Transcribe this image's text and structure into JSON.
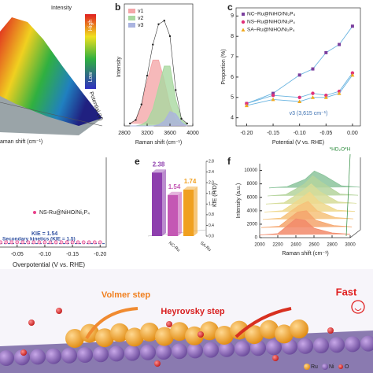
{
  "figure_a": {
    "intensity_label": "Intensity",
    "colorbar_high": "High",
    "colorbar_low": "Low",
    "potential_label": "Potential (V)",
    "raman_label": "aman shift (cm⁻¹)"
  },
  "chart_data": [
    {
      "type": "area",
      "panel_label": "b",
      "x_label": "Raman shift (cm⁻¹)",
      "y_label": "Intensity",
      "x": [
        2900,
        3000,
        3100,
        3200,
        3300,
        3400,
        3500,
        3600,
        3700,
        3800,
        3900
      ],
      "values": [
        0.02,
        0.05,
        0.18,
        0.42,
        0.68,
        0.85,
        0.88,
        0.75,
        0.3,
        0.06,
        0.02
      ],
      "series": [
        {
          "name": "v1",
          "color": "#f4a7a9",
          "values": [
            0.02,
            0.05,
            0.17,
            0.38,
            0.55,
            0.55,
            0.38,
            0.17,
            0.05,
            0.01,
            0
          ]
        },
        {
          "name": "v2",
          "color": "#a9d8a0",
          "values": [
            0,
            0,
            0.01,
            0.04,
            0.14,
            0.32,
            0.5,
            0.5,
            0.22,
            0.05,
            0.01
          ]
        },
        {
          "name": "v3",
          "color": "#aab4e0",
          "values": [
            0,
            0,
            0,
            0,
            0,
            0.01,
            0.04,
            0.12,
            0.1,
            0.03,
            0
          ]
        }
      ],
      "xlim": [
        2800,
        4000
      ],
      "xticks": [
        2800,
        3200,
        3600,
        4000
      ],
      "ylim": [
        0,
        1
      ],
      "legend": "upper left"
    },
    {
      "type": "line",
      "panel_label": "c",
      "x_label": "Potential (V vs. RHE)",
      "y_label": "Proportion (%)",
      "annotation": "v3 (3,615 cm⁻¹)",
      "x": [
        -0.2,
        -0.15,
        -0.1,
        -0.075,
        -0.05,
        -0.025,
        0
      ],
      "series": [
        {
          "name": "NC–Ru@NiHO/Ni₂P₄",
          "color": "#7b3f9e",
          "marker": "square",
          "values": [
            4.7,
            5.2,
            6.1,
            6.4,
            7.2,
            7.6,
            8.5
          ]
        },
        {
          "name": "NS–Ru@NiHO/Ni₂P₄",
          "color": "#e0307a",
          "marker": "circle",
          "values": [
            4.7,
            5.1,
            5.0,
            5.2,
            5.1,
            5.3,
            6.2
          ]
        },
        {
          "name": "SA–Ru@NiHO/Ni₂P₄",
          "color": "#f0a81c",
          "marker": "triangle",
          "values": [
            4.6,
            4.9,
            4.8,
            5.0,
            5.0,
            5.2,
            6.1
          ]
        }
      ],
      "xlim": [
        -0.22,
        0.015
      ],
      "xticks": [
        {
          "value": -0.2,
          "label": "-0.20"
        },
        -0.15,
        {
          "value": -0.1,
          "label": "-0.10"
        },
        -0.05,
        {
          "value": 0,
          "label": "0.00"
        }
      ],
      "ylim": [
        3.6,
        9.4
      ],
      "yticks": [
        4,
        5,
        6,
        7,
        8,
        9
      ],
      "line_color": "#6ab4e0",
      "legend": "upper left"
    },
    {
      "type": "scatter",
      "x_label": "Overpotential (V vs. RHE)",
      "annotation": "KIE = 1.54",
      "reference_label": "Secondary kinetics (KIE = 1.5)",
      "reference_value": 1.5,
      "x": [
        -0.02,
        -0.03,
        -0.04,
        -0.05,
        -0.06,
        -0.07,
        -0.08,
        -0.09,
        -0.1,
        -0.11,
        -0.12,
        -0.13,
        -0.14,
        -0.15,
        -0.16,
        -0.17,
        -0.18,
        -0.19,
        -0.2
      ],
      "series": [
        {
          "name": "NS-Ru@NiHO/Ni₂P₄",
          "color": "#e8408a",
          "values": [
            1.54,
            1.54,
            1.54,
            1.54,
            1.54,
            1.54,
            1.54,
            1.54,
            1.54,
            1.54,
            1.54,
            1.54,
            1.54,
            1.54,
            1.54,
            1.54,
            1.54,
            1.54,
            1.54
          ]
        }
      ],
      "xlim": [
        -0.019,
        -0.211
      ],
      "xticks": [
        -0.05,
        {
          "value": -0.1,
          "label": "-0.10"
        },
        -0.15,
        {
          "value": -0.2,
          "label": "-0.20"
        }
      ],
      "ylim": [
        1.4,
        4
      ]
    },
    {
      "type": "bar3d",
      "panel_label": "e",
      "y_label": "KIE (H/D)",
      "categories": [
        "NC-Ru",
        null,
        "SA-Ru"
      ],
      "values": [
        2.38,
        1.54,
        1.74
      ],
      "colors": [
        "#8e3fae",
        "#c458b4",
        "#f0a020"
      ],
      "ylim": [
        0,
        2.8
      ],
      "yticks": [
        {
          "value": 0,
          "label": "0.0"
        },
        0.4,
        0.8,
        1.2,
        1.6,
        {
          "value": 2,
          "label": "2.0"
        },
        2.4,
        2.8
      ]
    },
    {
      "type": "waterfall",
      "panel_label": "f",
      "x_label": "Raman shift (cm⁻¹)",
      "y_label": "Intensity (a.u.)",
      "annotation": "*HD₂O*H",
      "x": [
        2000,
        2200,
        2400,
        2500,
        2600,
        2800,
        3000
      ],
      "series": [
        {
          "color": "#f28a6a",
          "values": [
            400,
            600,
            2800,
            2600,
            1400,
            700,
            500
          ]
        },
        {
          "color": "#f5a56c",
          "values": [
            1500,
            1700,
            3800,
            4000,
            2600,
            1800,
            1600
          ]
        },
        {
          "color": "#f6c27a",
          "values": [
            2700,
            2900,
            4800,
            5400,
            4000,
            3000,
            2800
          ]
        },
        {
          "color": "#efd88c",
          "values": [
            3800,
            4000,
            5800,
            6800,
            5400,
            4100,
            3900
          ]
        },
        {
          "color": "#d6dc98",
          "values": [
            5000,
            5200,
            6900,
            8000,
            6800,
            5300,
            5100
          ]
        },
        {
          "color": "#b4d49c",
          "values": [
            6200,
            6400,
            7900,
            9200,
            8200,
            6500,
            6300
          ]
        },
        {
          "color": "#8cc49c",
          "values": [
            7400,
            7600,
            8700,
            9900,
            9300,
            7700,
            7500
          ]
        }
      ],
      "xlim": [
        2000,
        3000
      ],
      "xticks": [
        2000,
        2200,
        2400,
        2600,
        2800,
        3000
      ],
      "ylim": [
        0,
        11000
      ],
      "yticks": [
        0,
        2000,
        4000,
        6000,
        8000,
        10000
      ]
    }
  ],
  "scheme": {
    "volmer": "Volmer step",
    "heyrovsky": "Heyrovsky step",
    "fast": "Fast",
    "legend": [
      "Ru",
      "Ni",
      "O"
    ]
  }
}
